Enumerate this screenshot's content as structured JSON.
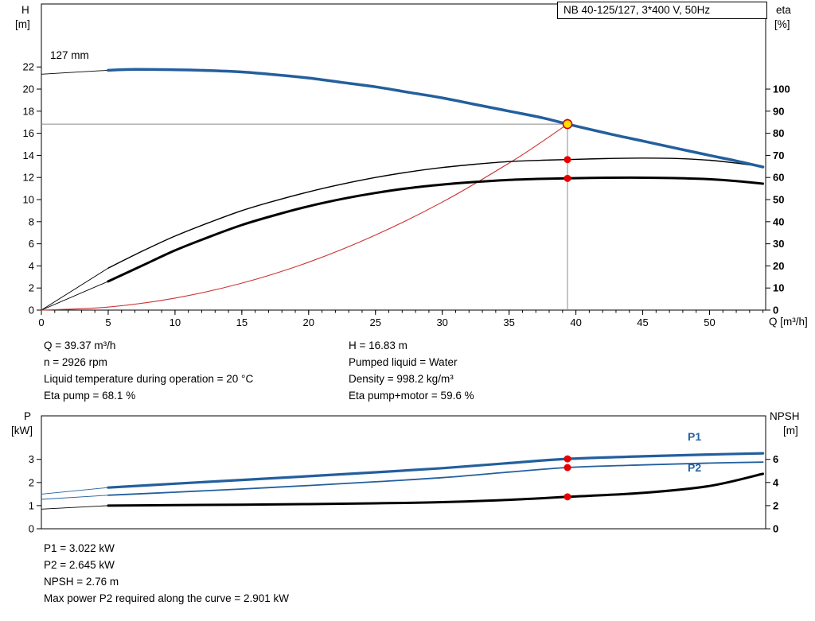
{
  "title_box": "NB 40-125/127, 3*400 V, 50Hz",
  "labels": {
    "h": "H",
    "m_top": "[m]",
    "eta": "eta",
    "pct": "[%]",
    "q_axis": "Q [m³/h]",
    "impeller": "127 mm",
    "p": "P",
    "kw": "[kW]",
    "npsh": "NPSH",
    "m_bottom": "[m]",
    "p1": "P1",
    "p2": "P2"
  },
  "info_top": {
    "col1": [
      "Q = 39.37 m³/h",
      "n = 2926 rpm",
      "Liquid temperature during operation = 20 °C",
      "Eta pump = 68.1 %"
    ],
    "col2": [
      "H = 16.83 m",
      "Pumped liquid = Water",
      "Density = 998.2 kg/m³",
      "Eta pump+motor = 59.6 %"
    ]
  },
  "info_bottom": [
    "P1 = 3.022 kW",
    "P2 = 2.645 kW",
    "NPSH = 2.76 m",
    "Max power P2 required along the curve = 2.901 kW"
  ],
  "colors": {
    "curve_blue": "#235f9d",
    "curve_black": "#000000",
    "system_red": "#cc3333",
    "marker_red": "#e60000",
    "marker_yellow_fill": "#ffdf00",
    "marker_yellow_stroke": "#d00000",
    "crosshair_gray": "#8c8c8c",
    "label_blue": "#2a639f"
  },
  "chart_data": [
    {
      "type": "line",
      "title": "NB 40-125/127, 3*400 V, 50Hz",
      "xlabel": "Q [m³/h]",
      "ylabel_left": "H [m]",
      "ylabel_right": "eta [%]",
      "xlim": [
        0,
        54.2
      ],
      "ylim_left": [
        0,
        27.7
      ],
      "ylim_right": [
        0,
        138.5
      ],
      "x_ticks": [
        0,
        5,
        10,
        15,
        20,
        25,
        30,
        35,
        40,
        45,
        50
      ],
      "x_minor_step": 1,
      "y_ticks_left": [
        0,
        2,
        4,
        6,
        8,
        10,
        12,
        14,
        16,
        18,
        20,
        22
      ],
      "y_ticks_right": [
        0,
        10,
        20,
        30,
        40,
        50,
        60,
        70,
        80,
        90,
        100
      ],
      "duty_point": {
        "Q": 39.37,
        "H": 16.83,
        "eta_pump": 68.1,
        "eta_pump_motor": 59.6,
        "impeller": "127 mm"
      },
      "crosshair": {
        "color": "#8c8c8c",
        "vertical": {
          "q": 39.37,
          "from": 17.35,
          "to": 0,
          "axis": "left"
        },
        "horizontal": {
          "v": 16.83,
          "from": 0,
          "to": 39.37,
          "axis": "left"
        }
      },
      "series": [
        {
          "name": "head-curve-extension",
          "axis": "left",
          "color": "#000000",
          "width": 0.9,
          "points": [
            [
              0,
              21.35
            ],
            [
              5,
              21.7
            ]
          ]
        },
        {
          "name": "eta-pump-lead",
          "axis": "right",
          "color": "#000000",
          "width": 0.9,
          "points": [
            [
              0,
              0
            ],
            [
              5,
              19
            ]
          ]
        },
        {
          "name": "eta-pump-motor-lead",
          "axis": "right",
          "color": "#000000",
          "width": 0.9,
          "points": [
            [
              0,
              0
            ],
            [
              5,
              13
            ]
          ]
        },
        {
          "name": "system-curve",
          "axis": "left",
          "color": "#cc3333",
          "width": 1.1,
          "points": [
            [
              0,
              0
            ],
            [
              5,
              0.27
            ],
            [
              10,
              1.09
            ],
            [
              15,
              2.44
            ],
            [
              20,
              4.34
            ],
            [
              25,
              6.79
            ],
            [
              30,
              9.77
            ],
            [
              35,
              13.3
            ],
            [
              37.5,
              15.27
            ],
            [
              39.37,
              16.83
            ]
          ]
        },
        {
          "name": "eta-pump-curve",
          "axis": "right",
          "color": "#000000",
          "width": 1.4,
          "points": [
            [
              5,
              19
            ],
            [
              7.5,
              26.5
            ],
            [
              10,
              33.5
            ],
            [
              12.5,
              39.5
            ],
            [
              15,
              45
            ],
            [
              17.5,
              49.5
            ],
            [
              20,
              53.5
            ],
            [
              22.5,
              57
            ],
            [
              25,
              60
            ],
            [
              27.5,
              62.5
            ],
            [
              30,
              64.5
            ],
            [
              32.5,
              66
            ],
            [
              35,
              67.2
            ],
            [
              37.5,
              67.8
            ],
            [
              39.37,
              68.1
            ],
            [
              42.5,
              68.6
            ],
            [
              45,
              68.8
            ],
            [
              47.5,
              68.6
            ],
            [
              50,
              67.8
            ],
            [
              52,
              66.5
            ],
            [
              54,
              64.8
            ]
          ]
        },
        {
          "name": "eta-pump-motor-curve",
          "axis": "right",
          "color": "#000000",
          "width": 3,
          "points": [
            [
              5,
              13
            ],
            [
              7.5,
              20
            ],
            [
              10,
              27
            ],
            [
              12.5,
              33
            ],
            [
              15,
              38.5
            ],
            [
              17.5,
              43
            ],
            [
              20,
              47
            ],
            [
              22.5,
              50.3
            ],
            [
              25,
              53
            ],
            [
              27.5,
              55.2
            ],
            [
              30,
              56.8
            ],
            [
              32.5,
              58
            ],
            [
              35,
              58.9
            ],
            [
              37.5,
              59.4
            ],
            [
              39.37,
              59.6
            ],
            [
              42.5,
              59.9
            ],
            [
              45,
              59.9
            ],
            [
              47.5,
              59.7
            ],
            [
              50,
              59.2
            ],
            [
              52,
              58.4
            ],
            [
              54,
              57.2
            ]
          ]
        },
        {
          "name": "head-curve-127mm",
          "axis": "left",
          "color": "#235f9d",
          "width": 3.5,
          "points": [
            [
              5,
              21.7
            ],
            [
              7,
              21.78
            ],
            [
              10,
              21.75
            ],
            [
              12.5,
              21.68
            ],
            [
              15,
              21.55
            ],
            [
              17.5,
              21.3
            ],
            [
              20,
              21.0
            ],
            [
              22.5,
              20.6
            ],
            [
              25,
              20.2
            ],
            [
              27.5,
              19.7
            ],
            [
              30,
              19.2
            ],
            [
              32.5,
              18.6
            ],
            [
              35,
              18.0
            ],
            [
              37.5,
              17.4
            ],
            [
              39.37,
              16.83
            ],
            [
              42.5,
              15.95
            ],
            [
              45,
              15.3
            ],
            [
              47.5,
              14.65
            ],
            [
              50,
              14.0
            ],
            [
              52,
              13.5
            ],
            [
              54,
              12.95
            ]
          ]
        }
      ],
      "markers": [
        {
          "name": "eta-pump-duty-dot",
          "q": 39.37,
          "v": 68.1,
          "axis": "right",
          "r": 4.5,
          "fill": "#e60000"
        },
        {
          "name": "eta-pump-motor-duty-dot",
          "q": 39.37,
          "v": 59.6,
          "axis": "right",
          "r": 4.5,
          "fill": "#e60000"
        },
        {
          "name": "duty-point-marker",
          "q": 39.37,
          "v": 16.83,
          "axis": "left",
          "r": 5.5,
          "fill": "#ffdf00",
          "stroke": "#d00000"
        }
      ]
    },
    {
      "type": "line",
      "title": "Power and NPSH curves",
      "xlabel": "",
      "ylabel_left": "P [kW]",
      "ylabel_right": "NPSH [m]",
      "xlim": [
        0,
        54.2
      ],
      "ylim_left": [
        0,
        4.88
      ],
      "ylim_right": [
        0,
        9.76
      ],
      "x_ticks": [],
      "y_ticks_left": [
        0,
        1,
        2,
        3
      ],
      "y_ticks_right": [
        0,
        2,
        4,
        6
      ],
      "duty_point": {
        "Q": 39.37,
        "P1": 3.022,
        "P2": 2.645,
        "NPSH": 2.76
      },
      "series": [
        {
          "name": "p1-lead",
          "axis": "left",
          "color": "#235f9d",
          "width": 0.9,
          "points": [
            [
              0,
              1.5
            ],
            [
              5,
              1.78
            ]
          ]
        },
        {
          "name": "p2-lead",
          "axis": "left",
          "color": "#235f9d",
          "width": 0.9,
          "points": [
            [
              0,
              1.27
            ],
            [
              5,
              1.45
            ]
          ]
        },
        {
          "name": "npsh-lead",
          "axis": "right",
          "color": "#000000",
          "width": 0.9,
          "points": [
            [
              0,
              1.7
            ],
            [
              5,
              2.0
            ]
          ]
        },
        {
          "name": "p2-curve",
          "axis": "left",
          "color": "#235f9d",
          "width": 1.8,
          "points": [
            [
              5,
              1.45
            ],
            [
              10,
              1.58
            ],
            [
              15,
              1.72
            ],
            [
              20,
              1.87
            ],
            [
              25,
              2.03
            ],
            [
              30,
              2.21
            ],
            [
              35,
              2.45
            ],
            [
              39.37,
              2.645
            ],
            [
              45,
              2.76
            ],
            [
              50,
              2.84
            ],
            [
              54,
              2.88
            ]
          ]
        },
        {
          "name": "p1-curve",
          "axis": "left",
          "color": "#235f9d",
          "width": 3.2,
          "points": [
            [
              5,
              1.78
            ],
            [
              10,
              1.95
            ],
            [
              15,
              2.11
            ],
            [
              20,
              2.27
            ],
            [
              25,
              2.44
            ],
            [
              30,
              2.62
            ],
            [
              35,
              2.84
            ],
            [
              39.37,
              3.022
            ],
            [
              45,
              3.13
            ],
            [
              50,
              3.21
            ],
            [
              54,
              3.26
            ]
          ]
        },
        {
          "name": "npsh-curve",
          "axis": "right",
          "color": "#000000",
          "width": 3,
          "points": [
            [
              5,
              2.0
            ],
            [
              10,
              2.04
            ],
            [
              15,
              2.08
            ],
            [
              20,
              2.13
            ],
            [
              25,
              2.2
            ],
            [
              30,
              2.3
            ],
            [
              35,
              2.5
            ],
            [
              39.37,
              2.76
            ],
            [
              45,
              3.1
            ],
            [
              50,
              3.7
            ],
            [
              54,
              4.75
            ]
          ]
        }
      ],
      "markers": [
        {
          "name": "p1-duty-dot",
          "q": 39.37,
          "v": 3.022,
          "axis": "left",
          "r": 4.5,
          "fill": "#e60000"
        },
        {
          "name": "p2-duty-dot",
          "q": 39.37,
          "v": 2.645,
          "axis": "left",
          "r": 4.5,
          "fill": "#e60000"
        },
        {
          "name": "npsh-duty-dot",
          "q": 39.37,
          "v": 2.76,
          "axis": "right",
          "r": 4.5,
          "fill": "#e60000"
        }
      ]
    }
  ]
}
